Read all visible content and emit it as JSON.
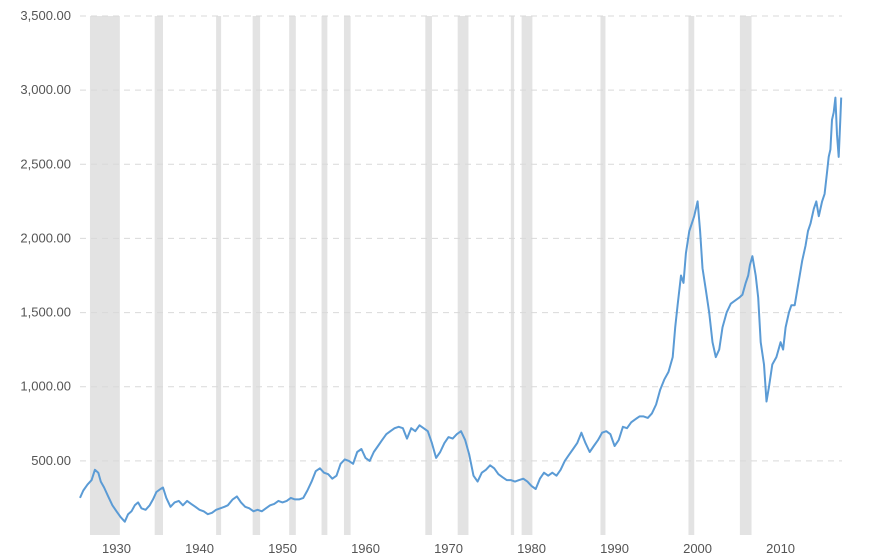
{
  "chart_data": {
    "type": "line",
    "title": "",
    "xlabel": "",
    "ylabel": "",
    "xlim": [
      1925.6,
      2017.4
    ],
    "ylim": [
      0,
      3500
    ],
    "yticks": [
      500,
      1000,
      1500,
      2000,
      2500,
      3000,
      3500
    ],
    "ytick_labels": [
      "500.00",
      "1,000.00",
      "1,500.00",
      "2,000.00",
      "2,500.00",
      "3,000.00",
      "3,500.00"
    ],
    "xticks": [
      1930,
      1940,
      1950,
      1960,
      1970,
      1980,
      1990,
      2000,
      2010
    ],
    "xtick_labels": [
      "1930",
      "1940",
      "1950",
      "1960",
      "1970",
      "1980",
      "1990",
      "2000",
      "2010"
    ],
    "grid": "horizontal dashed",
    "line_color": "#5b9bd5",
    "recession_color": "#e3e3e3",
    "recessions": [
      [
        1926.8,
        1930.4
      ],
      [
        1934.6,
        1935.6
      ],
      [
        1942.0,
        1942.6
      ],
      [
        1946.4,
        1947.3
      ],
      [
        1950.8,
        1951.6
      ],
      [
        1954.7,
        1955.4
      ],
      [
        1957.4,
        1958.2
      ],
      [
        1967.2,
        1968.0
      ],
      [
        1971.1,
        1972.4
      ],
      [
        1977.5,
        1977.9
      ],
      [
        1978.8,
        1980.1
      ],
      [
        1988.3,
        1988.9
      ],
      [
        1998.9,
        1999.6
      ],
      [
        2005.1,
        2006.5
      ]
    ],
    "series": [
      {
        "x": [
          1925.6,
          1926.0,
          1926.5,
          1927.0,
          1927.4,
          1927.8,
          1928.1,
          1928.5,
          1929.0,
          1929.5,
          1930.0,
          1930.5,
          1931.0,
          1931.4,
          1931.8,
          1932.2,
          1932.6,
          1933.0,
          1933.5,
          1934.0,
          1934.4,
          1934.8,
          1935.3,
          1935.6,
          1936.0,
          1936.5,
          1937.0,
          1937.5,
          1938.0,
          1938.5,
          1939.0,
          1939.5,
          1940.0,
          1940.5,
          1941.0,
          1941.5,
          1942.0,
          1942.5,
          1943.0,
          1943.4,
          1944.0,
          1944.5,
          1945.0,
          1945.5,
          1946.0,
          1946.5,
          1947.0,
          1947.5,
          1948.0,
          1948.5,
          1949.0,
          1949.5,
          1950.0,
          1950.5,
          1951.0,
          1951.5,
          1952.0,
          1952.5,
          1953.0,
          1953.5,
          1954.0,
          1954.5,
          1955.0,
          1955.5,
          1956.0,
          1956.5,
          1957.0,
          1957.5,
          1958.0,
          1958.5,
          1959.0,
          1959.5,
          1960.0,
          1960.5,
          1961.0,
          1961.5,
          1962.0,
          1962.5,
          1963.0,
          1963.5,
          1964.0,
          1964.5,
          1965.0,
          1965.5,
          1966.0,
          1966.5,
          1967.0,
          1967.5,
          1968.0,
          1968.5,
          1969.0,
          1969.5,
          1970.0,
          1970.5,
          1971.0,
          1971.5,
          1972.0,
          1972.5,
          1973.0,
          1973.5,
          1974.0,
          1974.5,
          1975.0,
          1975.5,
          1976.0,
          1976.5,
          1977.0,
          1977.5,
          1978.0,
          1978.5,
          1979.0,
          1979.5,
          1980.0,
          1980.5,
          1981.0,
          1981.5,
          1982.0,
          1982.5,
          1983.0,
          1983.5,
          1984.0,
          1984.5,
          1985.0,
          1985.5,
          1986.0,
          1986.5,
          1987.0,
          1987.5,
          1988.0,
          1988.5,
          1989.0,
          1989.5,
          1990.0,
          1990.5,
          1991.0,
          1991.5,
          1992.0,
          1992.5,
          1993.0,
          1993.5,
          1994.0,
          1994.5,
          1995.0,
          1995.5,
          1996.0,
          1996.5,
          1997.0,
          1997.3,
          1997.6,
          1998.0,
          1998.3,
          1998.6,
          1999.0,
          1999.3,
          1999.6,
          2000.0,
          2000.3,
          2000.6,
          2001.0,
          2001.4,
          2001.8,
          2002.2,
          2002.6,
          2003.0,
          2003.5,
          2004.0,
          2004.5,
          2005.0,
          2005.4,
          2005.8,
          2006.1,
          2006.3,
          2006.6,
          2007.0,
          2007.3,
          2007.6,
          2008.0,
          2008.3,
          2008.6,
          2009.0,
          2009.5,
          2010.0,
          2010.3,
          2010.6,
          2011.0,
          2011.3,
          2011.7,
          2012.0,
          2012.3,
          2012.6,
          2013.0,
          2013.3,
          2013.6,
          2014.0,
          2014.3,
          2014.6,
          2015.0,
          2015.3,
          2015.6,
          2015.8,
          2016.0,
          2016.2,
          2016.4,
          2016.6,
          2016.8,
          2017.0,
          2017.2,
          2017.3
        ],
        "values": [
          250,
          300,
          340,
          370,
          440,
          420,
          360,
          320,
          260,
          200,
          160,
          120,
          90,
          140,
          160,
          200,
          220,
          180,
          170,
          200,
          240,
          290,
          310,
          320,
          250,
          190,
          220,
          230,
          200,
          230,
          210,
          190,
          170,
          160,
          140,
          150,
          170,
          180,
          190,
          200,
          240,
          260,
          220,
          190,
          180,
          160,
          170,
          160,
          180,
          200,
          210,
          230,
          220,
          230,
          250,
          240,
          240,
          250,
          300,
          360,
          430,
          450,
          420,
          410,
          380,
          400,
          480,
          510,
          500,
          480,
          560,
          580,
          520,
          500,
          560,
          600,
          640,
          680,
          700,
          720,
          730,
          720,
          650,
          720,
          700,
          740,
          720,
          700,
          620,
          520,
          560,
          620,
          660,
          650,
          680,
          700,
          640,
          540,
          400,
          360,
          420,
          440,
          470,
          450,
          410,
          390,
          370,
          370,
          360,
          370,
          380,
          360,
          330,
          310,
          380,
          420,
          400,
          420,
          400,
          440,
          500,
          540,
          580,
          620,
          690,
          620,
          560,
          600,
          640,
          690,
          700,
          680,
          600,
          640,
          730,
          720,
          760,
          780,
          800,
          800,
          790,
          820,
          880,
          980,
          1050,
          1100,
          1200,
          1400,
          1550,
          1750,
          1700,
          1900,
          2050,
          2100,
          2150,
          2250,
          2050,
          1800,
          1650,
          1500,
          1300,
          1200,
          1250,
          1400,
          1500,
          1560,
          1580,
          1600,
          1620,
          1700,
          1750,
          1820,
          1880,
          1750,
          1600,
          1300,
          1150,
          900,
          1000,
          1150,
          1200,
          1300,
          1250,
          1400,
          1500,
          1550,
          1550,
          1650,
          1750,
          1850,
          1950,
          2050,
          2100,
          2200,
          2250,
          2150,
          2250,
          2300,
          2450,
          2550,
          2600,
          2800,
          2850,
          2950,
          2700,
          2550,
          2800,
          2950
        ]
      }
    ]
  }
}
